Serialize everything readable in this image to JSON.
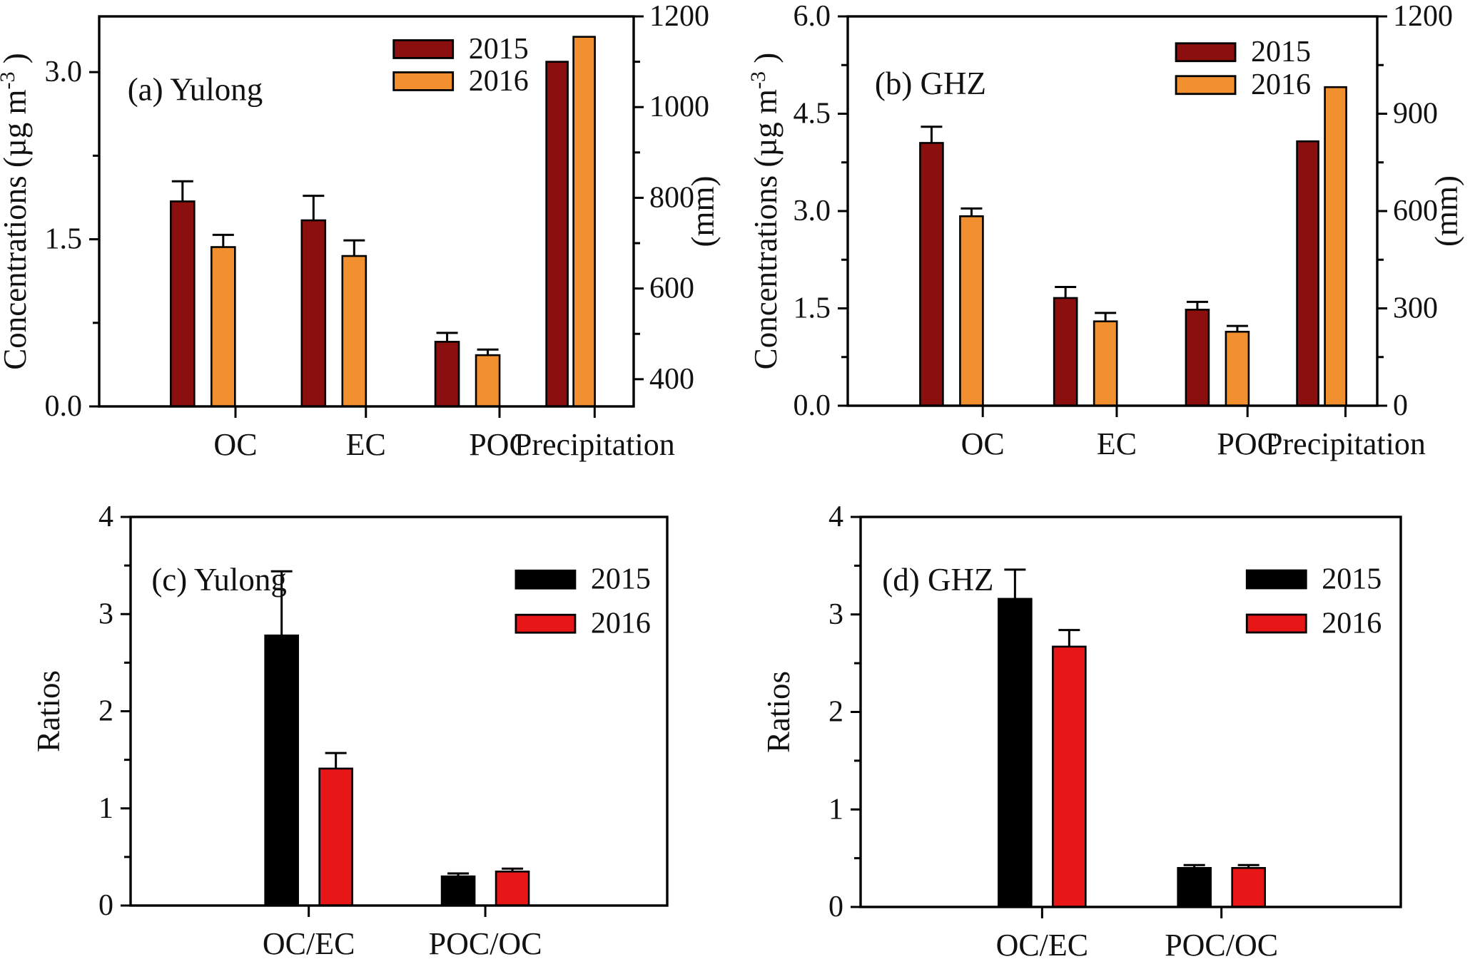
{
  "figure": {
    "description": "Four-panel bar chart figure comparing 2015 and 2016 carbonaceous aerosol concentrations, precipitation and ratios at Yulong and GHZ sites",
    "background": "#ffffff"
  },
  "colors": {
    "darkred_2015": "#8B0F0F",
    "orange_2016": "#F29030",
    "black_2015": "#000000",
    "red_2016": "#E81717",
    "axis": "#000000",
    "text": "#111111"
  },
  "chart_data": [
    {
      "type": "bar",
      "panel": "a",
      "title": "(a) Yulong",
      "y_left": {
        "label_parts": [
          {
            "t": "Concentrations (µg m"
          },
          {
            "t": "-3",
            "sup": true
          },
          {
            "t": " )"
          }
        ],
        "range": [
          0,
          3.5
        ],
        "majors": [
          {
            "v": 0.0,
            "t": "0.0"
          },
          {
            "v": 1.5,
            "t": "1.5"
          },
          {
            "v": 3.0,
            "t": "3.0"
          }
        ],
        "minors": [
          0.75,
          2.25
        ]
      },
      "y_right": {
        "label_parts": [
          {
            "t": "(mm)"
          }
        ],
        "range": [
          340,
          1200
        ],
        "majors": [
          {
            "v": 400,
            "t": "400"
          },
          {
            "v": 600,
            "t": "600"
          },
          {
            "v": 800,
            "t": "800"
          },
          {
            "v": 1000,
            "t": "1000"
          },
          {
            "v": 1200,
            "t": "1200"
          }
        ],
        "minors": [
          500,
          700,
          900,
          1100
        ]
      },
      "series": [
        {
          "name": "2015",
          "color_key": "darkred_2015"
        },
        {
          "name": "2016",
          "color_key": "orange_2016"
        }
      ],
      "categories": [
        {
          "label": "OC",
          "axis": "left",
          "values": [
            1.84,
            1.43
          ],
          "errors": [
            0.18,
            0.11
          ]
        },
        {
          "label": "EC",
          "axis": "left",
          "values": [
            1.67,
            1.35
          ],
          "errors": [
            0.22,
            0.14
          ]
        },
        {
          "label": "POC",
          "axis": "left",
          "values": [
            0.58,
            0.46
          ],
          "errors": [
            0.08,
            0.05
          ]
        },
        {
          "label": "Precipitation",
          "axis": "right",
          "values": [
            1100,
            1155
          ],
          "errors": [
            null,
            null
          ],
          "adjacent": true
        }
      ],
      "legend": {
        "items": [
          "2015",
          "2016"
        ]
      }
    },
    {
      "type": "bar",
      "panel": "b",
      "title": "(b) GHZ",
      "y_left": {
        "label_parts": [
          {
            "t": "Concentrations (µg m"
          },
          {
            "t": "-3",
            "sup": true
          },
          {
            "t": " )"
          }
        ],
        "range": [
          0,
          6.0
        ],
        "majors": [
          {
            "v": 0.0,
            "t": "0.0"
          },
          {
            "v": 1.5,
            "t": "1.5"
          },
          {
            "v": 3.0,
            "t": "3.0"
          },
          {
            "v": 4.5,
            "t": "4.5"
          },
          {
            "v": 6.0,
            "t": "6.0"
          }
        ],
        "minors": [
          0.75,
          2.25,
          3.75,
          5.25
        ]
      },
      "y_right": {
        "label_parts": [
          {
            "t": "(mm)"
          }
        ],
        "range": [
          0,
          1200
        ],
        "majors": [
          {
            "v": 0,
            "t": "0"
          },
          {
            "v": 300,
            "t": "300"
          },
          {
            "v": 600,
            "t": "600"
          },
          {
            "v": 900,
            "t": "900"
          },
          {
            "v": 1200,
            "t": "1200"
          }
        ],
        "minors": [
          150,
          450,
          750,
          1050
        ]
      },
      "series": [
        {
          "name": "2015",
          "color_key": "darkred_2015"
        },
        {
          "name": "2016",
          "color_key": "orange_2016"
        }
      ],
      "categories": [
        {
          "label": "OC",
          "axis": "left",
          "values": [
            4.05,
            2.92
          ],
          "errors": [
            0.25,
            0.12
          ]
        },
        {
          "label": "EC",
          "axis": "left",
          "values": [
            1.66,
            1.3
          ],
          "errors": [
            0.17,
            0.13
          ]
        },
        {
          "label": "POC",
          "axis": "left",
          "values": [
            1.48,
            1.14
          ],
          "errors": [
            0.12,
            0.09
          ]
        },
        {
          "label": "Precipitation",
          "axis": "right",
          "values": [
            815,
            982
          ],
          "errors": [
            null,
            null
          ],
          "adjacent": true
        }
      ],
      "legend": {
        "items": [
          "2015",
          "2016"
        ]
      }
    },
    {
      "type": "bar",
      "panel": "c",
      "title": "(c) Yulong",
      "y_left": {
        "label_parts": [
          {
            "t": "Ratios"
          }
        ],
        "range": [
          0,
          4
        ],
        "majors": [
          {
            "v": 0,
            "t": "0"
          },
          {
            "v": 1,
            "t": "1"
          },
          {
            "v": 2,
            "t": "2"
          },
          {
            "v": 3,
            "t": "3"
          },
          {
            "v": 4,
            "t": "4"
          }
        ],
        "minors": [
          0.5,
          1.5,
          2.5,
          3.5
        ]
      },
      "series": [
        {
          "name": "2015",
          "color_key": "black_2015"
        },
        {
          "name": "2016",
          "color_key": "red_2016"
        }
      ],
      "categories": [
        {
          "label": "OC/EC",
          "axis": "left",
          "values": [
            2.78,
            1.41
          ],
          "errors": [
            0.66,
            0.16
          ]
        },
        {
          "label": "POC/OC",
          "axis": "left",
          "values": [
            0.3,
            0.35
          ],
          "errors": [
            0.03,
            0.03
          ]
        }
      ],
      "legend": {
        "items": [
          "2015",
          "2016"
        ]
      }
    },
    {
      "type": "bar",
      "panel": "d",
      "title": "(d) GHZ",
      "y_left": {
        "label_parts": [
          {
            "t": "Ratios"
          }
        ],
        "range": [
          0,
          4
        ],
        "majors": [
          {
            "v": 0,
            "t": "0"
          },
          {
            "v": 1,
            "t": "1"
          },
          {
            "v": 2,
            "t": "2"
          },
          {
            "v": 3,
            "t": "3"
          },
          {
            "v": 4,
            "t": "4"
          }
        ],
        "minors": [
          0.5,
          1.5,
          2.5,
          3.5
        ]
      },
      "series": [
        {
          "name": "2015",
          "color_key": "black_2015"
        },
        {
          "name": "2016",
          "color_key": "red_2016"
        }
      ],
      "categories": [
        {
          "label": "OC/EC",
          "axis": "left",
          "values": [
            3.16,
            2.67
          ],
          "errors": [
            0.3,
            0.17
          ]
        },
        {
          "label": "POC/OC",
          "axis": "left",
          "values": [
            0.4,
            0.4
          ],
          "errors": [
            0.03,
            0.03
          ]
        }
      ],
      "legend": {
        "items": [
          "2015",
          "2016"
        ]
      }
    }
  ]
}
